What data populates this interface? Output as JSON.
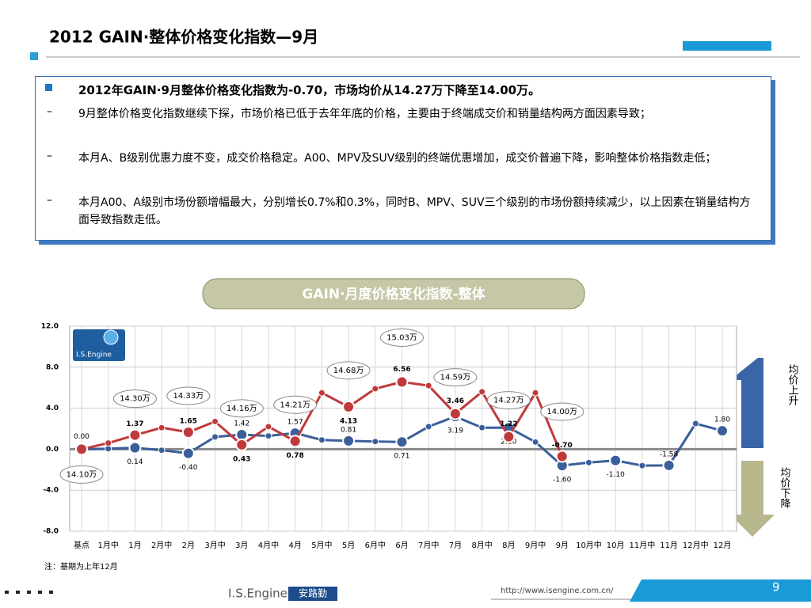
{
  "header": {
    "title": "2012 GAIN·整体价格变化指数—9月"
  },
  "summary": {
    "headline": "2012年GAIN·9月整体价格变化指数为-0.70，市场均价从14.27万下降至14.00万。",
    "points": [
      "9月整体价格变化指数继续下探，市场价格已低于去年年底的价格，主要由于终端成交价和销量结构两方面因素导致；",
      "本月A、B级别优惠力度不变，成交价格稳定。A00、MPV及SUV级别的终端优惠增加，成交价普遍下降，影响整体价格指数走低；",
      "本月A00、A级别市场份额增幅最大，分别增长0.7%和0.3%，同时B、MPV、SUV三个级别的市场份额持续减少，以上因素在销量结构方面导致指数走低。"
    ]
  },
  "chart_data": {
    "type": "line",
    "title": "GAIN·月度价格变化指数-整体",
    "logo": "I.S.Engine",
    "categories": [
      "基点",
      "1月中",
      "1月",
      "2月中",
      "2月",
      "3月中",
      "3月",
      "4月中",
      "4月",
      "5月中",
      "5月",
      "6月中",
      "6月",
      "7月中",
      "7月",
      "8月中",
      "8月",
      "9月中",
      "9月",
      "10月中",
      "10月",
      "11月中",
      "11月",
      "12月中",
      "12月"
    ],
    "series": [
      {
        "color": "#3a5f9a",
        "values": [
          0.0,
          0.05,
          0.14,
          -0.1,
          -0.4,
          1.2,
          1.42,
          1.3,
          1.57,
          0.9,
          0.81,
          0.75,
          0.71,
          2.2,
          3.19,
          2.1,
          2.1,
          0.7,
          -1.6,
          -1.3,
          -1.1,
          -1.6,
          -1.58,
          2.5,
          1.8
        ],
        "value_labels": [
          "0.00",
          null,
          "0.14",
          null,
          "-0.40",
          null,
          "1.42",
          null,
          "1.57",
          null,
          "0.81",
          null,
          "0.71",
          null,
          "3.19",
          null,
          "2.10",
          null,
          "-1.60",
          null,
          "-1.10",
          null,
          "-1.58",
          null,
          "1.80"
        ]
      },
      {
        "color": "#c0393b",
        "values": [
          0.0,
          0.6,
          1.37,
          2.1,
          1.65,
          2.7,
          0.43,
          2.2,
          0.78,
          5.5,
          4.13,
          5.9,
          6.56,
          6.2,
          3.46,
          5.6,
          1.22,
          5.5,
          -0.7,
          null,
          null,
          null,
          null,
          null,
          null
        ],
        "value_labels": [
          null,
          null,
          "1.37",
          null,
          "1.65",
          null,
          "0.43",
          null,
          "0.78",
          null,
          "4.13",
          null,
          "6.56",
          null,
          "3.46",
          null,
          "1.22",
          null,
          "-0.70",
          null,
          null,
          null,
          null,
          null,
          null
        ]
      }
    ],
    "annotations": [
      "14.10万",
      "14.30万",
      "14.33万",
      "14.16万",
      "14.21万",
      "14.68万",
      "15.03万",
      "14.59万",
      "14.27万",
      "14.00万"
    ],
    "ylim": [
      -8,
      12
    ],
    "yticks": [
      {
        "value": 12,
        "label": "12.0"
      },
      {
        "value": 8,
        "label": "8.0"
      },
      {
        "value": 4,
        "label": "4.0"
      },
      {
        "value": 0,
        "label": "0.0"
      },
      {
        "value": -4,
        "label": "-4.0"
      },
      {
        "value": -8,
        "label": "-8.0"
      }
    ],
    "grid": true,
    "side_up": "均价上升",
    "side_down": "均价下降",
    "note": "注：基期为上年12月"
  },
  "footer": {
    "brand": "I.S.Engine",
    "brand_cn": "安路勤",
    "url": "http://www.isengine.com.cn/",
    "page": "9"
  }
}
